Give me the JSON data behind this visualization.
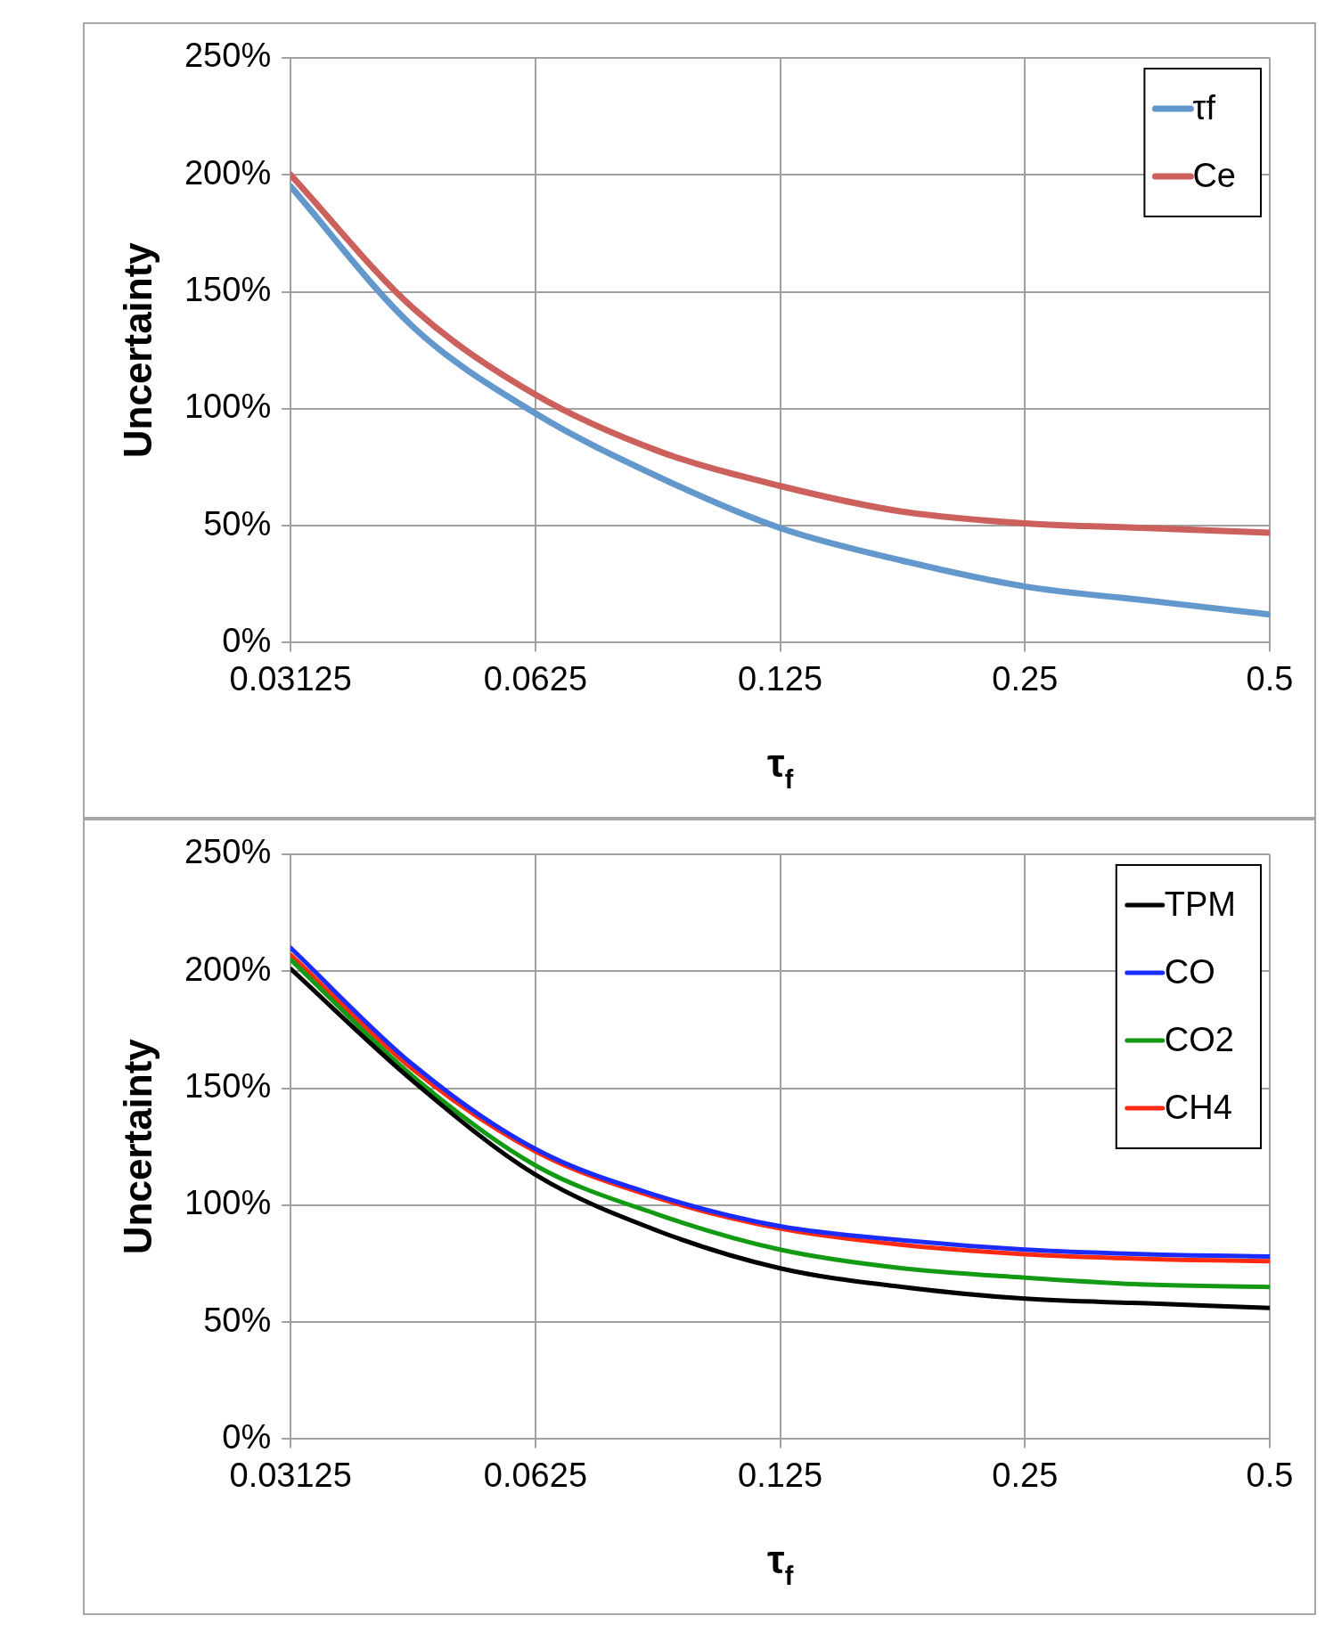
{
  "chart_data": [
    {
      "type": "line",
      "xlabel": "τ$_{f}$",
      "ylabel": "Uncertainty",
      "log": "x",
      "grid": true,
      "legend": "top right",
      "marker": "none",
      "line_style": "solid",
      "xlim": [
        0.03125,
        0.5
      ],
      "xticks": [
        0.03125,
        0.0625,
        0.125,
        0.25,
        0.5
      ],
      "ylim": [
        0,
        250
      ],
      "yticks": [
        {
          "value": 0,
          "label": "0%"
        },
        {
          "value": 50,
          "label": "50%"
        },
        {
          "value": 100,
          "label": "100%"
        },
        {
          "value": 150,
          "label": "150%"
        },
        {
          "value": 200,
          "label": "200%"
        },
        {
          "value": 250,
          "label": "250%"
        }
      ],
      "x": [
        0.03125,
        0.0442,
        0.0625,
        0.0884,
        0.125,
        0.1768,
        0.25,
        0.3536,
        0.5
      ],
      "series": [
        {
          "name": "τf",
          "color": "#6398cd",
          "values": [
            195,
            135,
            98,
            71,
            49,
            35,
            24,
            18,
            12
          ]
        },
        {
          "name": "Ce",
          "color": "#cb605c",
          "values": [
            200,
            143,
            106,
            82,
            67,
            56,
            51,
            49,
            47
          ]
        }
      ]
    },
    {
      "type": "line",
      "xlabel": "τ$_{f}$",
      "ylabel": "Uncertainty",
      "log": "x",
      "grid": true,
      "legend": "top right",
      "marker": "none",
      "line_style": "solid",
      "xlim": [
        0.03125,
        0.5
      ],
      "xticks": [
        0.03125,
        0.0625,
        0.125,
        0.25,
        0.5
      ],
      "ylim": [
        0,
        250
      ],
      "yticks": [
        {
          "value": 0,
          "label": "0%"
        },
        {
          "value": 50,
          "label": "50%"
        },
        {
          "value": 100,
          "label": "100%"
        },
        {
          "value": 150,
          "label": "150%"
        },
        {
          "value": 200,
          "label": "200%"
        },
        {
          "value": 250,
          "label": "250%"
        }
      ],
      "x": [
        0.03125,
        0.0442,
        0.0625,
        0.0884,
        0.125,
        0.1768,
        0.25,
        0.3536,
        0.5
      ],
      "series": [
        {
          "name": "TPM",
          "color": "#000000",
          "values": [
            201,
            153,
            113,
            89,
            73,
            65,
            60,
            58,
            56
          ]
        },
        {
          "name": "CO",
          "color": "#1a2cff",
          "values": [
            210,
            160,
            124,
            104,
            91,
            85,
            81,
            79,
            78
          ]
        },
        {
          "name": "CO2",
          "color": "#129a12",
          "values": [
            205,
            155,
            117,
            96,
            81,
            73,
            69,
            66,
            65
          ]
        },
        {
          "name": "CH4",
          "color": "#ff2a10",
          "values": [
            207,
            158,
            123,
            103,
            90,
            83,
            79,
            77,
            76
          ]
        }
      ]
    }
  ]
}
